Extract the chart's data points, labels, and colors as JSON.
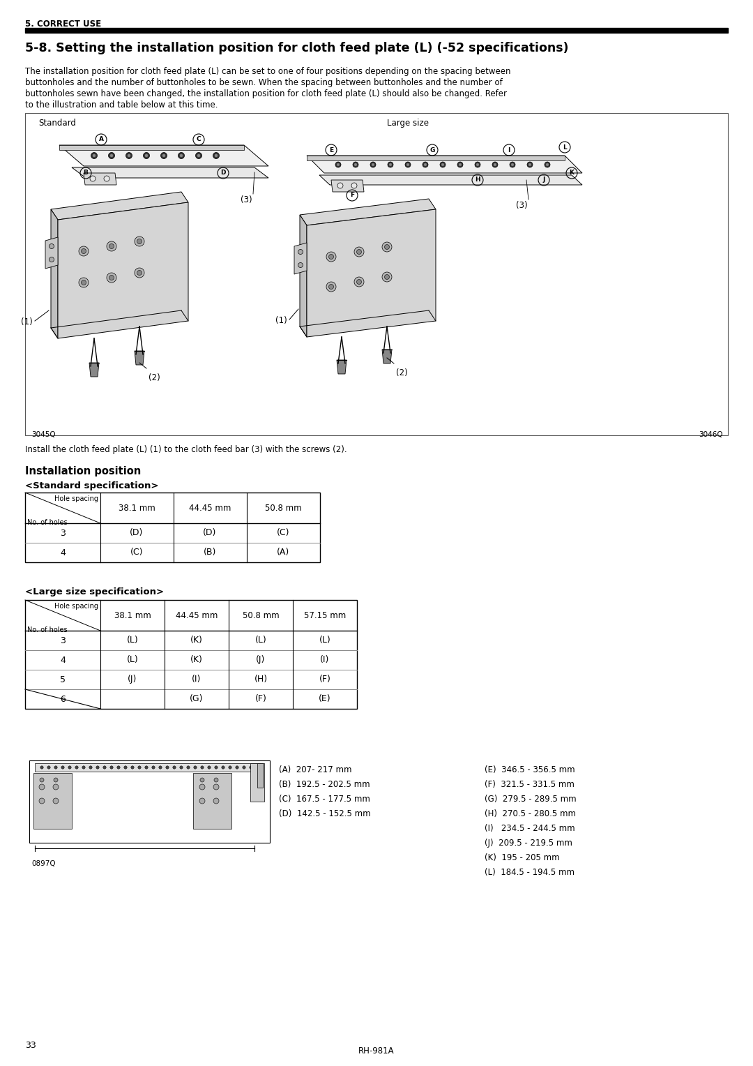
{
  "section_label": "5. CORRECT USE",
  "title": "5-8. Setting the installation position for cloth feed plate (L) (-52 specifications)",
  "body_line1": "The installation position for cloth feed plate (L) can be set to one of four positions depending on the spacing between",
  "body_line2": "buttonholes and the number of buttonholes to be sewn. When the spacing between buttonholes and the number of",
  "body_line3": "buttonholes sewn have been changed, the installation position for cloth feed plate (L) should also be changed. Refer",
  "body_line4": "to the illustration and table below at this time.",
  "caption_text": "Install the cloth feed plate (L) (1) to the cloth feed bar (3) with the screws (2).",
  "install_pos_title": "Installation position",
  "std_spec_title": "<Standard specification>",
  "large_spec_title": "<Large size specification>",
  "std_col_headers": [
    "38.1 mm",
    "44.45 mm",
    "50.8 mm"
  ],
  "std_header_top": "Hole spacing",
  "std_header_bot": "No. of holes",
  "std_rows": [
    [
      "3",
      "(D)",
      "(D)",
      "(C)"
    ],
    [
      "4",
      "(C)",
      "(B)",
      "(A)"
    ]
  ],
  "large_col_headers": [
    "38.1 mm",
    "44.45 mm",
    "50.8 mm",
    "57.15 mm"
  ],
  "large_header_top": "Hole spacing",
  "large_header_bot": "No. of holes",
  "large_rows": [
    [
      "3",
      "(L)",
      "(K)",
      "(L)",
      "(L)"
    ],
    [
      "4",
      "(L)",
      "(K)",
      "(J)",
      "(I)"
    ],
    [
      "5",
      "(J)",
      "(I)",
      "(H)",
      "(F)"
    ],
    [
      "6",
      "",
      "(G)",
      "(F)",
      "(E)"
    ]
  ],
  "measurements_left": [
    "(A)  207- 217 mm",
    "(B)  192.5 - 202.5 mm",
    "(C)  167.5 - 177.5 mm",
    "(D)  142.5 - 152.5 mm"
  ],
  "measurements_right": [
    "(E)  346.5 - 356.5 mm",
    "(F)  321.5 - 331.5 mm",
    "(G)  279.5 - 289.5 mm",
    "(H)  270.5 - 280.5 mm",
    "(I)   234.5 - 244.5 mm",
    "(J)  209.5 - 219.5 mm",
    "(K)  195 - 205 mm",
    "(L)  184.5 - 194.5 mm"
  ],
  "img_code_left": "3045Q",
  "img_code_right": "3046Q",
  "img_code_bottom": "0897Q",
  "page_number": "33",
  "footer_text": "RH-981A",
  "bg_color": "#ffffff",
  "text_color": "#000000"
}
